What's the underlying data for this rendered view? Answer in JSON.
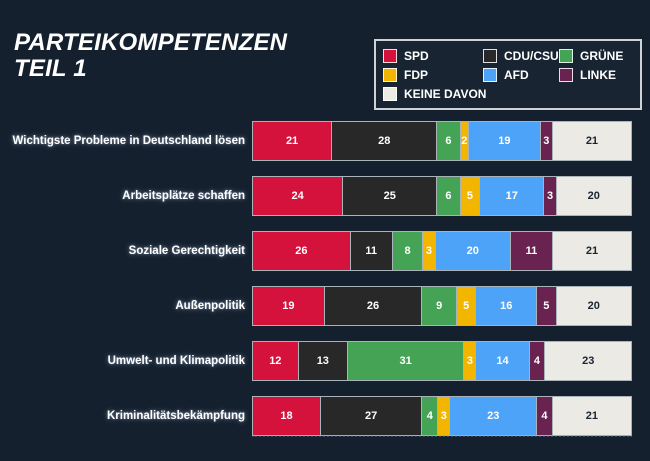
{
  "title": {
    "line1": "PARTEIKOMPETENZEN",
    "line2": "TEIL 1"
  },
  "colors": {
    "background": "#14202e",
    "bar_separator": "#aab2ba",
    "legend_border": "#cdd2d7"
  },
  "legend": {
    "items": [
      {
        "label": "SPD",
        "color": "#d4123c"
      },
      {
        "label": "CDU/CSU",
        "color": "#282828"
      },
      {
        "label": "GRÜNE",
        "color": "#45a355"
      },
      {
        "label": "FDP",
        "color": "#f2b500"
      },
      {
        "label": "AFD",
        "color": "#4da3f7"
      },
      {
        "label": "LINKE",
        "color": "#6a2350"
      },
      {
        "label": "KEINE DAVON",
        "color": "#eceae4"
      }
    ]
  },
  "chart_data": {
    "type": "bar",
    "stacked": true,
    "orientation": "horizontal",
    "total_per_bar": 100,
    "title": "PARTEIKOMPETENZEN TEIL 1",
    "legend_position": "top-right",
    "categories": [
      "Wichtigste Probleme in Deutschland lösen",
      "Arbeitsplätze schaffen",
      "Soziale Gerechtigkeit",
      "Außenpolitik",
      "Umwelt- und Klimapolitik",
      "Kriminalitätsbekämpfung"
    ],
    "series": [
      {
        "name": "SPD",
        "color": "#d4123c",
        "text_color": "#ffffff",
        "values": [
          21,
          24,
          26,
          19,
          12,
          18
        ]
      },
      {
        "name": "CDU/CSU",
        "color": "#282828",
        "text_color": "#ffffff",
        "values": [
          28,
          25,
          11,
          26,
          13,
          27
        ]
      },
      {
        "name": "GRÜNE",
        "color": "#45a355",
        "text_color": "#ffffff",
        "values": [
          6,
          6,
          8,
          9,
          31,
          4
        ]
      },
      {
        "name": "FDP",
        "color": "#f2b500",
        "text_color": "#ffffff",
        "values": [
          2,
          5,
          3,
          5,
          3,
          3
        ]
      },
      {
        "name": "AFD",
        "color": "#4da3f7",
        "text_color": "#ffffff",
        "values": [
          19,
          17,
          20,
          16,
          14,
          23
        ]
      },
      {
        "name": "LINKE",
        "color": "#6a2350",
        "text_color": "#ffffff",
        "values": [
          3,
          3,
          11,
          5,
          4,
          4
        ]
      },
      {
        "name": "KEINE DAVON",
        "color": "#eceae4",
        "text_color": "#1a2432",
        "values": [
          21,
          20,
          21,
          20,
          23,
          21
        ]
      }
    ]
  }
}
